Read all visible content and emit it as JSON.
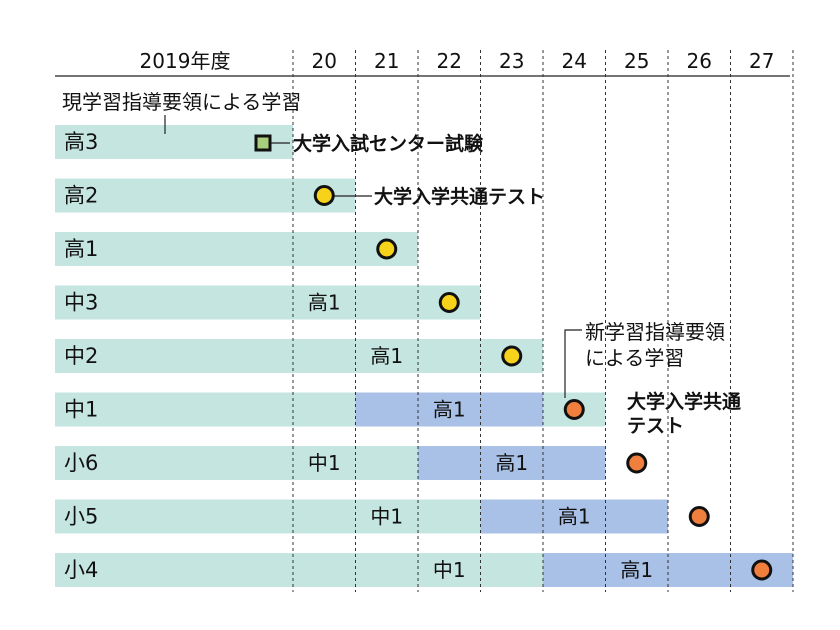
{
  "header": {
    "first_year": "2019年度",
    "years": [
      "20",
      "21",
      "22",
      "23",
      "24",
      "25",
      "26",
      "27"
    ]
  },
  "rows": [
    {
      "label": "高3",
      "cells": []
    },
    {
      "label": "高2",
      "cells": []
    },
    {
      "label": "高1",
      "cells": []
    },
    {
      "label": "中3",
      "cells": [
        {
          "col": "20",
          "text": "高1"
        }
      ]
    },
    {
      "label": "中2",
      "cells": [
        {
          "col": "21",
          "text": "高1"
        }
      ]
    },
    {
      "label": "中1",
      "cells": [
        {
          "col": "22",
          "text": "高1"
        }
      ]
    },
    {
      "label": "小6",
      "cells": [
        {
          "col": "20",
          "text": "中1"
        },
        {
          "col": "23",
          "text": "高1"
        }
      ]
    },
    {
      "label": "小5",
      "cells": [
        {
          "col": "21",
          "text": "中1"
        },
        {
          "col": "24",
          "text": "高1"
        }
      ]
    },
    {
      "label": "小4",
      "cells": [
        {
          "col": "22",
          "text": "中1"
        },
        {
          "col": "25",
          "text": "高1"
        }
      ]
    }
  ],
  "periods": {
    "current": "現学習指導要領による学習",
    "new_line1": "新学習指導要領",
    "new_line2": "による学習"
  },
  "exams": {
    "center_test": "大学入試センター試験",
    "common_test": "大学入学共通テスト",
    "common_test_line1": "大学入学共通",
    "common_test_line2": "テスト"
  },
  "colors": {
    "current": "#c5e5e0",
    "new": "#a9c1e6",
    "center_marker": "#a8cf7b",
    "common_marker_old": "#f7d21a",
    "common_marker_new": "#f07f3d"
  },
  "marker_legend": {
    "square": "current-exam-icon",
    "yellow_circle": "common-test-current-icon",
    "orange_circle": "common-test-new-icon"
  }
}
